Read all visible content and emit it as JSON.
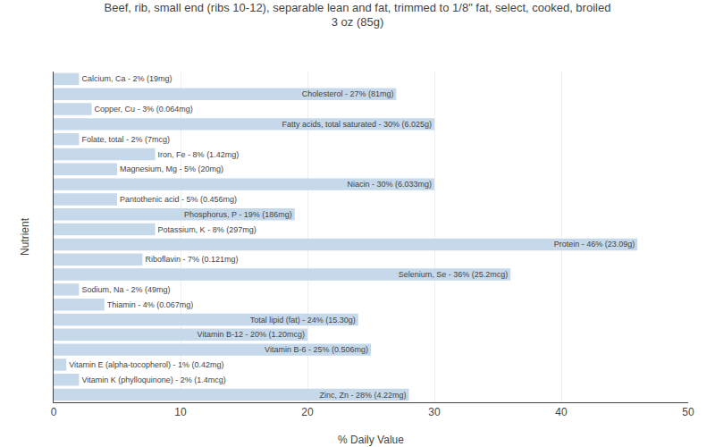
{
  "chart_data": {
    "type": "bar",
    "orientation": "horizontal",
    "title": "Beef, rib, small end (ribs 10-12), separable lean and fat, trimmed to 1/8\" fat, select, cooked, broiled\n3 oz (85g)",
    "xlabel": "% Daily Value",
    "ylabel": "Nutrient",
    "categories": [
      "Calcium, Ca - 2% (19mg)",
      "Cholesterol - 27% (81mg)",
      "Copper, Cu - 3% (0.064mg)",
      "Fatty acids, total saturated - 30% (6.025g)",
      "Folate, total - 2% (7mcg)",
      "Iron, Fe - 8% (1.42mg)",
      "Magnesium, Mg - 5% (20mg)",
      "Niacin - 30% (6.033mg)",
      "Pantothenic acid - 5% (0.456mg)",
      "Phosphorus, P - 19% (186mg)",
      "Potassium, K - 8% (297mg)",
      "Protein - 46% (23.09g)",
      "Riboflavin - 7% (0.121mg)",
      "Selenium, Se - 36% (25.2mcg)",
      "Sodium, Na - 2% (49mg)",
      "Thiamin - 4% (0.067mg)",
      "Total lipid (fat) - 24% (15.30g)",
      "Vitamin B-12 - 20% (1.20mcg)",
      "Vitamin B-6 - 25% (0.506mg)",
      "Vitamin E (alpha-tocopherol) - 1% (0.42mg)",
      "Vitamin K (phylloquinone) - 2% (1.4mcg)",
      "Zinc, Zn - 28% (4.22mg)"
    ],
    "values": [
      2,
      27,
      3,
      30,
      2,
      8,
      5,
      30,
      5,
      19,
      8,
      46,
      7,
      36,
      2,
      4,
      24,
      20,
      25,
      1,
      2,
      28
    ],
    "color": "#c5d9eb",
    "xlim": [
      0,
      50
    ],
    "xticks": [
      0,
      10,
      20,
      30,
      40,
      50
    ],
    "grid": true,
    "tick_labels": "x"
  }
}
